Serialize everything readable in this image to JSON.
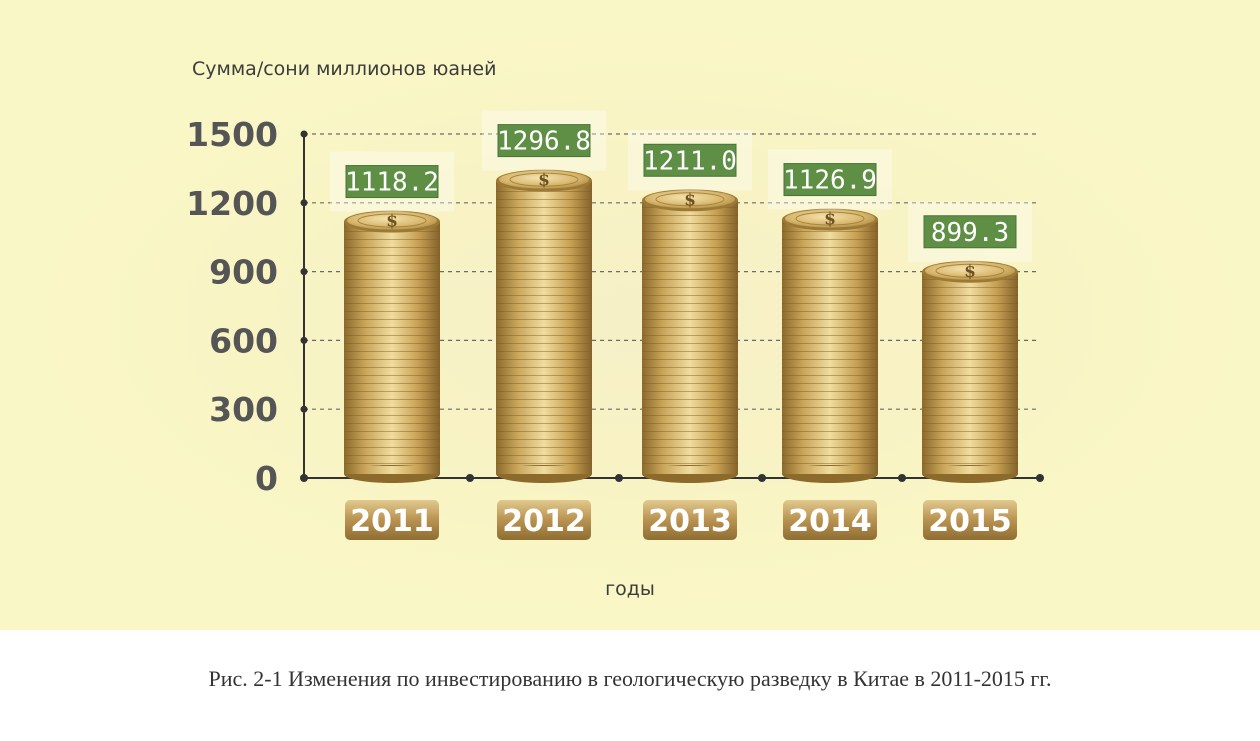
{
  "chart_data": {
    "type": "bar",
    "categories": [
      "2011",
      "2012",
      "2013",
      "2014",
      "2015"
    ],
    "values": [
      1118.2,
      1296.8,
      1211.0,
      1126.9,
      899.3
    ],
    "value_labels": [
      "1118.2",
      "1296.8",
      "1211.0",
      "1126.9",
      "899.3"
    ],
    "ylabel": "Сумма/сони миллионов юаней",
    "xlabel": "годы",
    "yticks": [
      0,
      300,
      600,
      900,
      1200,
      1500
    ],
    "ylim": [
      0,
      1500
    ],
    "grid": true,
    "bar_style": "stack of gold coins"
  },
  "caption": "Рис. 2-1 Изменения по инвестированию в геологическую разведку в Китае в 2011-2015 гг.",
  "colors": {
    "background": "#f8f3c4",
    "coin_gold": "#c9a55a",
    "label_green": "#5f8f45",
    "axis": "#333333",
    "tick_text": "#555555"
  }
}
